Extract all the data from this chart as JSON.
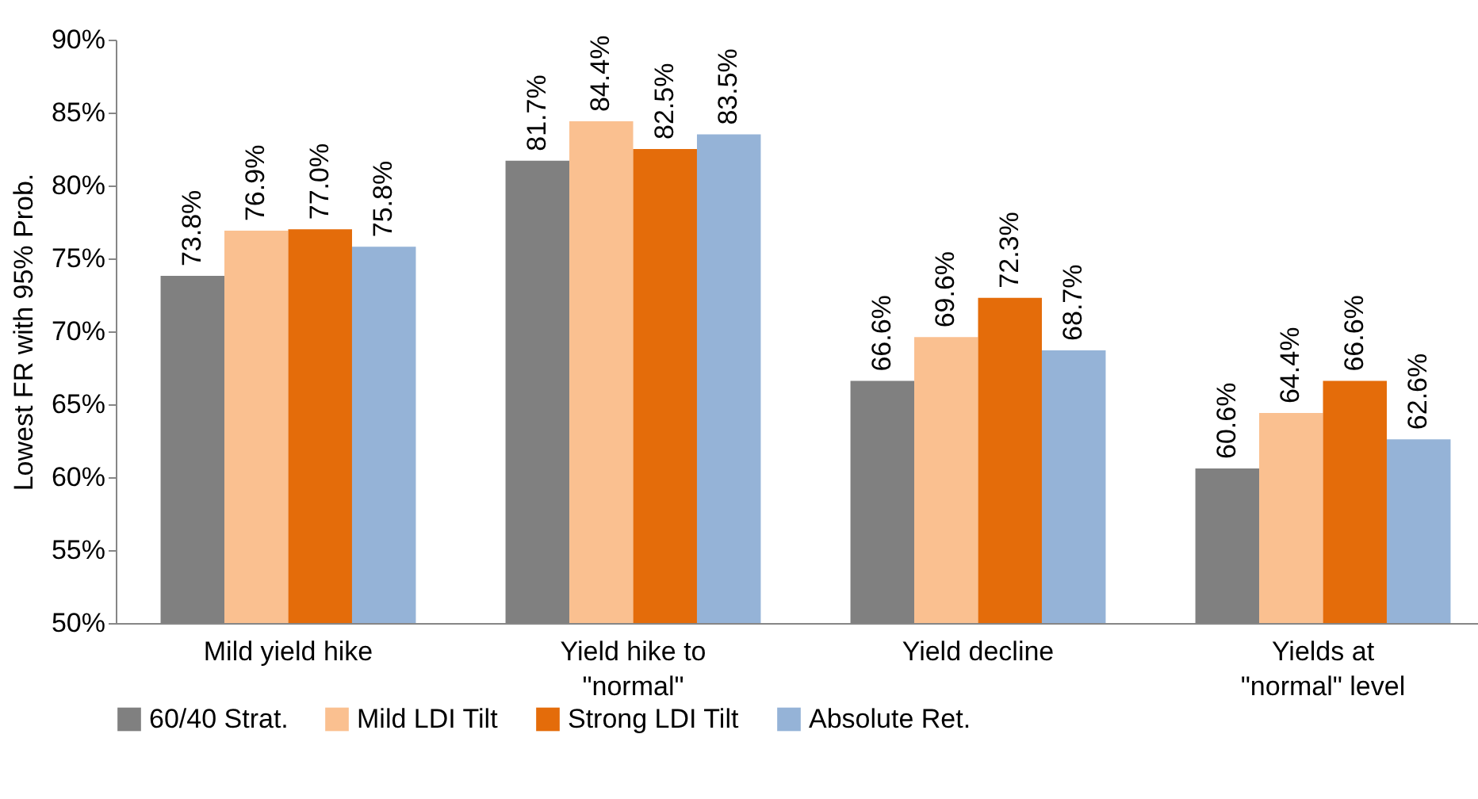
{
  "chart_data": {
    "type": "bar",
    "ylabel": "Lowest FR with 95% Prob.",
    "categories": [
      "Mild yield hike",
      "Yield hike to \"normal\"",
      "Yield decline",
      "Yields at \"normal\" level"
    ],
    "series": [
      {
        "name": "60/40 Strat.",
        "color": "#808080",
        "values": [
          73.8,
          81.7,
          66.6,
          60.6
        ],
        "value_labels": [
          "73.8%",
          "81.7%",
          "66.6%",
          "60.6%"
        ]
      },
      {
        "name": "Mild LDI Tilt",
        "color": "#fac090",
        "values": [
          76.9,
          84.4,
          69.6,
          64.4
        ],
        "value_labels": [
          "76.9%",
          "84.4%",
          "69.6%",
          "64.4%"
        ]
      },
      {
        "name": "Strong LDI Tilt",
        "color": "#e46c0a",
        "values": [
          77.0,
          82.5,
          72.3,
          66.6
        ],
        "value_labels": [
          "77.0%",
          "82.5%",
          "72.3%",
          "66.6%"
        ]
      },
      {
        "name": "Absolute Ret.",
        "color": "#95b3d7",
        "values": [
          75.8,
          83.5,
          68.7,
          62.6
        ],
        "value_labels": [
          "75.8%",
          "83.5%",
          "68.7%",
          "62.6%"
        ]
      }
    ],
    "ylim": [
      50,
      90
    ],
    "yticks": [
      {
        "value": 50,
        "label": "50%"
      },
      {
        "value": 55,
        "label": "55%"
      },
      {
        "value": 60,
        "label": "60%"
      },
      {
        "value": 65,
        "label": "65%"
      },
      {
        "value": 70,
        "label": "70%"
      },
      {
        "value": 75,
        "label": "75%"
      },
      {
        "value": 80,
        "label": "80%"
      },
      {
        "value": 85,
        "label": "85%"
      },
      {
        "value": 90,
        "label": "90%"
      }
    ],
    "grid": false,
    "legend": "bottom"
  }
}
